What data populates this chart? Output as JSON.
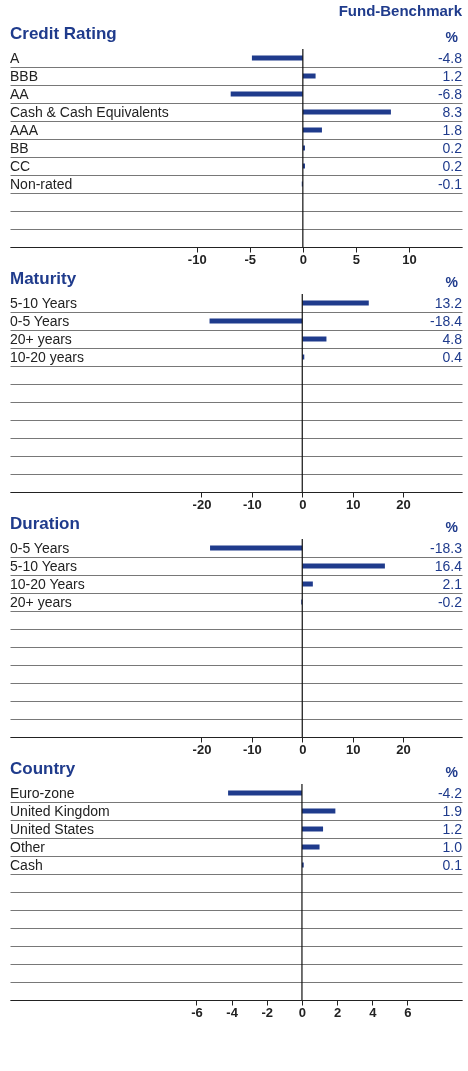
{
  "chart_data": [
    {
      "type": "bar",
      "orientation": "horizontal",
      "title": "Credit Rating",
      "xlabel": "%",
      "annotations": [
        "Fund-Benchmark"
      ],
      "categories": [
        "A",
        "BBB",
        "AA",
        "Cash & Cash Equivalents",
        "AAA",
        "BB",
        "CC",
        "Non-rated",
        null,
        null,
        null
      ],
      "values": [
        -4.8,
        1.2,
        -6.8,
        8.3,
        1.8,
        0.2,
        0.2,
        -0.1,
        null,
        null,
        null
      ],
      "color": "#1f3b8c",
      "value_labels": [
        "-4.8",
        "1.2",
        "-6.8",
        "8.3",
        "1.8",
        "0.2",
        "0.2",
        "-0.1",
        null,
        null,
        null
      ],
      "xlim": [
        -27.6,
        15
      ],
      "xticks": [
        -10,
        -5,
        0,
        5,
        10
      ],
      "grid": "y",
      "ref_lines": [
        {
          "axis": "x",
          "value": 0
        }
      ]
    },
    {
      "type": "bar",
      "orientation": "horizontal",
      "title": "Maturity",
      "xlabel": "%",
      "categories": [
        "5-10 Years",
        "0-5 Years",
        "20+ years",
        "10-20 years",
        null,
        null,
        null,
        null,
        null,
        null,
        null
      ],
      "values": [
        13.2,
        -18.4,
        4.8,
        0.4,
        null,
        null,
        null,
        null,
        null,
        null,
        null
      ],
      "color": "#1f3b8c",
      "value_labels": [
        "13.2",
        "-18.4",
        "4.8",
        "0.4",
        null,
        null,
        null,
        null,
        null,
        null,
        null
      ],
      "xlim": [
        -58,
        31.7
      ],
      "xticks": [
        -20,
        -10,
        0,
        10,
        20
      ],
      "grid": "y",
      "ref_lines": [
        {
          "axis": "x",
          "value": 0
        }
      ]
    },
    {
      "type": "bar",
      "orientation": "horizontal",
      "title": "Duration",
      "xlabel": "%",
      "categories": [
        "0-5 Years",
        "5-10 Years",
        "10-20 Years",
        "20+ years",
        null,
        null,
        null,
        null,
        null,
        null,
        null
      ],
      "values": [
        -18.3,
        16.4,
        2.1,
        -0.2,
        null,
        null,
        null,
        null,
        null,
        null,
        null
      ],
      "color": "#1f3b8c",
      "value_labels": [
        "-18.3",
        "16.4",
        "2.1",
        "-0.2",
        null,
        null,
        null,
        null,
        null,
        null,
        null
      ],
      "xlim": [
        -58,
        31.7
      ],
      "xticks": [
        -20,
        -10,
        0,
        10,
        20
      ],
      "grid": "y",
      "ref_lines": [
        {
          "axis": "x",
          "value": 0
        }
      ]
    },
    {
      "type": "bar",
      "orientation": "horizontal",
      "title": "Country",
      "xlabel": "%",
      "categories": [
        "Euro-zone",
        "United Kingdom",
        "United States",
        "Other",
        "Cash",
        null,
        null,
        null,
        null,
        null,
        null,
        null
      ],
      "values": [
        -4.2,
        1.9,
        1.2,
        1.0,
        0.1,
        null,
        null,
        null,
        null,
        null,
        null,
        null
      ],
      "color": "#1f3b8c",
      "value_labels": [
        "-4.2",
        "1.9",
        "1.2",
        "1.0",
        "0.1",
        null,
        null,
        null,
        null,
        null,
        null,
        null
      ],
      "xlim": [
        -16.6,
        9.1
      ],
      "xticks": [
        -6,
        -4,
        -2,
        0,
        2,
        4,
        6
      ],
      "grid": "y",
      "ref_lines": [
        {
          "axis": "x",
          "value": 0
        }
      ]
    }
  ]
}
